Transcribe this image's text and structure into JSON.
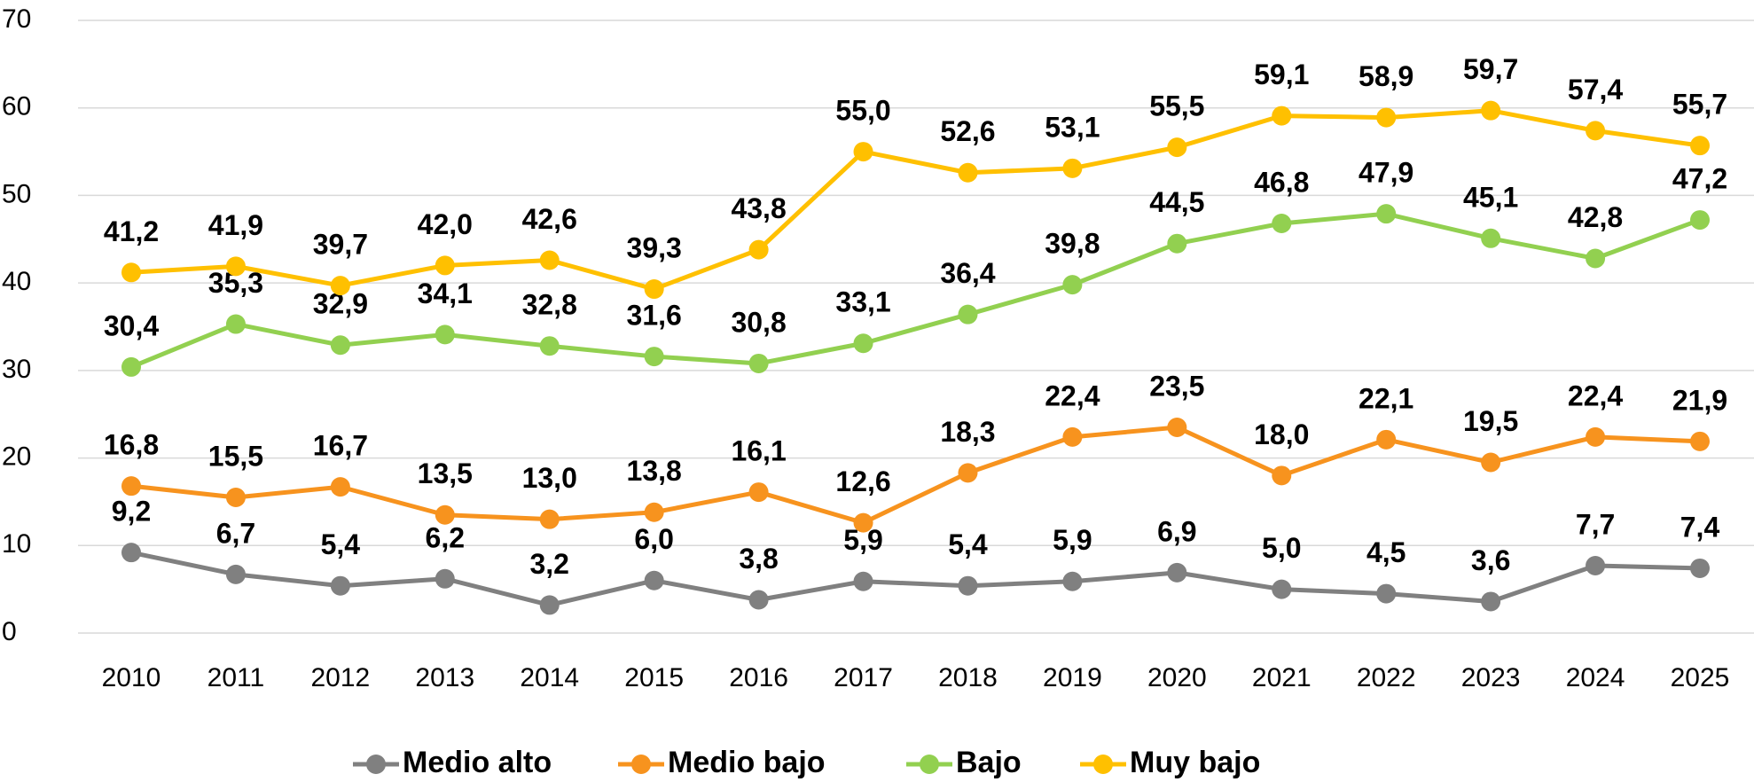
{
  "chart_data": {
    "type": "line",
    "categories": [
      "2010",
      "2011",
      "2012",
      "2013",
      "2014",
      "2015",
      "2016",
      "2017",
      "2018",
      "2019",
      "2020",
      "2021",
      "2022",
      "2023",
      "2024",
      "2025"
    ],
    "ylim": [
      0,
      70
    ],
    "yticks": [
      0,
      10,
      20,
      30,
      40,
      50,
      60,
      70
    ],
    "grid": true,
    "legend": "bottom",
    "series": [
      {
        "name": "Medio alto",
        "color": "#808080",
        "values": [
          9.2,
          6.7,
          5.4,
          6.2,
          3.2,
          6.0,
          3.8,
          5.9,
          5.4,
          5.9,
          6.9,
          5.0,
          4.5,
          3.6,
          7.7,
          7.4
        ],
        "value_labels": [
          "9,2",
          "6,7",
          "5,4",
          "6,2",
          "3,2",
          "6,0",
          "3,8",
          "5,9",
          "5,4",
          "5,9",
          "6,9",
          "5,0",
          "4,5",
          "3,6",
          "7,7",
          "7,4"
        ]
      },
      {
        "name": "Medio bajo",
        "color": "#F7931E",
        "values": [
          16.8,
          15.5,
          16.7,
          13.5,
          13.0,
          13.8,
          16.1,
          12.6,
          18.3,
          22.4,
          23.5,
          18.0,
          22.1,
          19.5,
          22.4,
          21.9
        ],
        "value_labels": [
          "16,8",
          "15,5",
          "16,7",
          "13,5",
          "13,0",
          "13,8",
          "16,1",
          "12,6",
          "18,3",
          "22,4",
          "23,5",
          "18,0",
          "22,1",
          "19,5",
          "22,4",
          "21,9"
        ]
      },
      {
        "name": "Bajo",
        "color": "#92D050",
        "values": [
          30.4,
          35.3,
          32.9,
          34.1,
          32.8,
          31.6,
          30.8,
          33.1,
          36.4,
          39.8,
          44.5,
          46.8,
          47.9,
          45.1,
          42.8,
          47.2
        ],
        "value_labels": [
          "30,4",
          "35,3",
          "32,9",
          "34,1",
          "32,8",
          "31,6",
          "30,8",
          "33,1",
          "36,4",
          "39,8",
          "44,5",
          "46,8",
          "47,9",
          "45,1",
          "42,8",
          "47,2"
        ]
      },
      {
        "name": "Muy bajo",
        "color": "#FFC000",
        "values": [
          41.2,
          41.9,
          39.7,
          42.0,
          42.6,
          39.3,
          43.8,
          55.0,
          52.6,
          53.1,
          55.5,
          59.1,
          58.9,
          59.7,
          57.4,
          55.7
        ],
        "value_labels": [
          "41,2",
          "41,9",
          "39,7",
          "42,0",
          "42,6",
          "39,3",
          "43,8",
          "55,0",
          "52,6",
          "53,1",
          "55,5",
          "59,1",
          "58,9",
          "59,7",
          "57,4",
          "55,7"
        ]
      }
    ]
  }
}
